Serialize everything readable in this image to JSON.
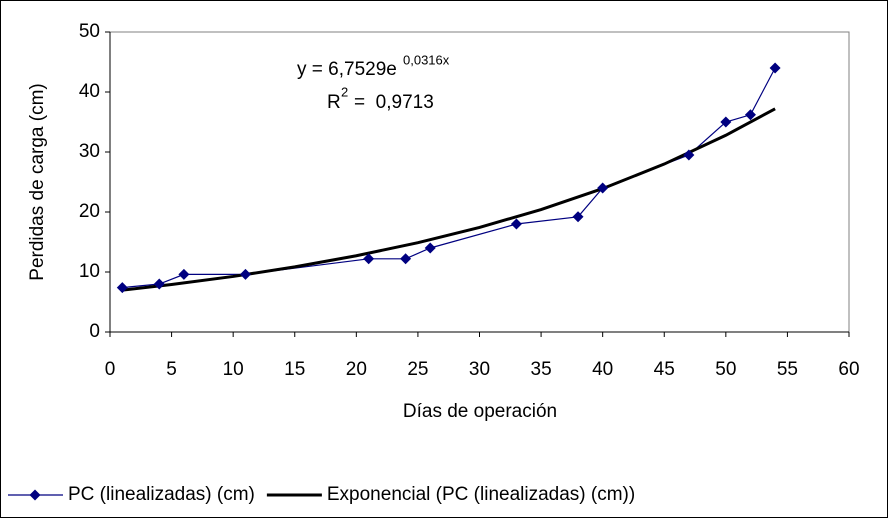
{
  "chart_data": {
    "type": "scatter-line",
    "xlabel": "Días de operación",
    "ylabel": "Perdidas de carga (cm)",
    "xlim": [
      0,
      60
    ],
    "xticks": [
      0,
      5,
      10,
      15,
      20,
      25,
      30,
      35,
      40,
      45,
      50,
      55,
      60
    ],
    "ylim": [
      0,
      50
    ],
    "yticks": [
      0,
      10,
      20,
      30,
      40,
      50
    ],
    "annotations": {
      "equation": "y = 6,7529e",
      "equation_exponent": "0,0316x",
      "r2_label": "R",
      "r2_exponent": "2",
      "r2_value": "=  0,9713"
    },
    "legend": "bottom",
    "series": [
      {
        "name": "PC (linealizadas) (cm)",
        "color": "#000080",
        "marker": "diamond",
        "x": [
          1,
          4,
          6,
          11,
          21,
          24,
          26,
          33,
          38,
          40,
          47,
          50,
          52,
          54
        ],
        "values": [
          7.4,
          8,
          9.6,
          9.6,
          12.2,
          12.2,
          14,
          18,
          19.2,
          24,
          29.5,
          35,
          36.2,
          44
        ]
      },
      {
        "name": "Exponencial (PC (linealizadas) (cm))",
        "color": "#000000",
        "x": [
          1,
          5,
          10,
          15,
          20,
          25,
          30,
          35,
          40,
          45,
          50,
          54
        ],
        "values": [
          6.97,
          7.91,
          9.26,
          10.85,
          12.71,
          14.88,
          17.43,
          20.41,
          23.9,
          27.99,
          32.79,
          37.2
        ]
      }
    ]
  }
}
